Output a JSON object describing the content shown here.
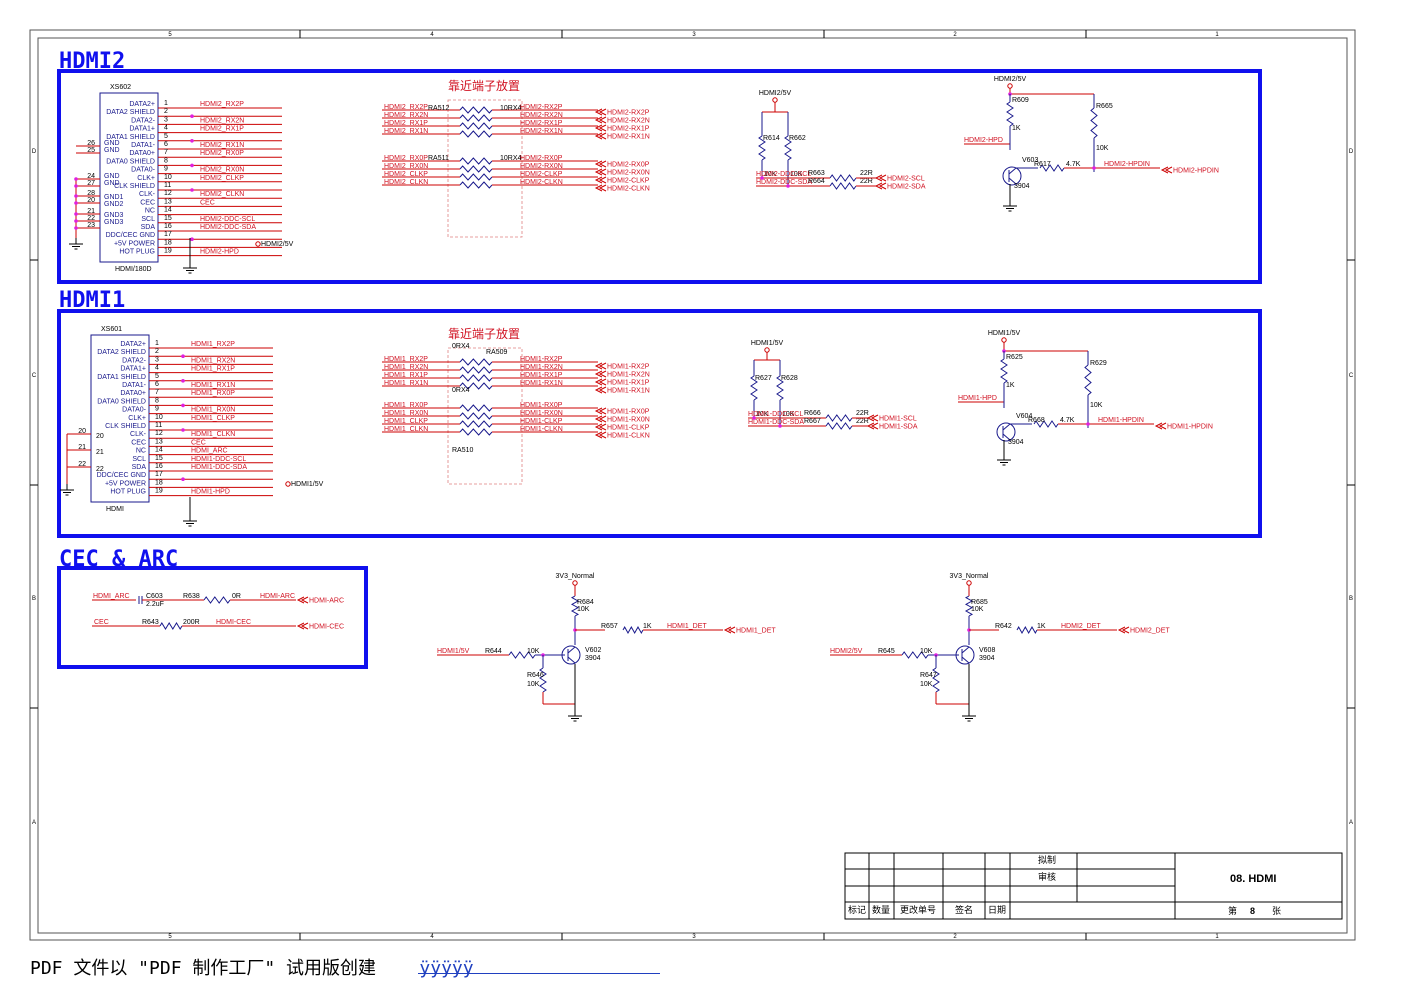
{
  "border": {
    "col_labels": [
      "5",
      "4",
      "3",
      "2",
      "1"
    ],
    "row_labels": [
      "D",
      "C",
      "B",
      "A"
    ]
  },
  "hdmi2": {
    "title": "HDMI2",
    "note": "靠近端子放置",
    "connector": {
      "ref": "XS602",
      "part": "HDMI/180D",
      "pins": [
        "DATA2+",
        "DATA2 SHIELD",
        "DATA2-",
        "DATA1+",
        "DATA1 SHIELD",
        "DATA1-",
        "DATA0+",
        "DATA0 SHIELD",
        "DATA0-",
        "CLK+",
        "CLK SHIELD",
        "CLK-",
        "CEC",
        "NC",
        "SCL",
        "SDA",
        "DDC/CEC GND",
        "+5V POWER",
        "HOT PLUG"
      ],
      "pin_numbers": [
        "1",
        "2",
        "3",
        "4",
        "5",
        "6",
        "7",
        "8",
        "9",
        "10",
        "11",
        "12",
        "13",
        "14",
        "15",
        "16",
        "17",
        "18",
        "19"
      ],
      "gnd_labels": [
        "GND",
        "GND",
        "GND",
        "GND",
        "GND1",
        "GND2",
        "GND3",
        "GND3"
      ],
      "gnd_pins": [
        "26",
        "25",
        "24",
        "27",
        "28",
        "20",
        "21",
        "22",
        "23"
      ],
      "nets": [
        "HDMI2_RX2P",
        "",
        "HDMI2_RX2N",
        "HDMI2_RX1P",
        "",
        "HDMI2_RX1N",
        "HDMI2_RX0P",
        "",
        "HDMI2_RX0N",
        "HDMI2_CLKP",
        "",
        "HDMI2_CLKN",
        "CEC",
        "",
        "HDMI2-DDC-SCL",
        "HDMI2-DDC-SDA",
        "",
        "",
        "HDMI2-HPD"
      ],
      "power": "HDMI2/5V"
    },
    "ra_top": {
      "ref": "RA512",
      "value": "10RX4",
      "in": [
        "HDMI2_RX2P",
        "HDMI2_RX2N",
        "HDMI2_RX1P",
        "HDMI2_RX1N"
      ],
      "out": [
        "HDMI2-RX2P",
        "HDMI2-RX2N",
        "HDMI2-RX1P",
        "HDMI2-RX1N"
      ]
    },
    "ra_bot": {
      "ref": "RA511",
      "value": "10RX4",
      "in": [
        "HDMI2_RX0P",
        "HDMI2_RX0N",
        "HDMI2_CLKP",
        "HDMI2_CLKN"
      ],
      "out": [
        "HDMI2-RX0P",
        "HDMI2-RX0N",
        "HDMI2-CLKP",
        "HDMI2-CLKN"
      ]
    },
    "ports": [
      "HDMI2-RX2P",
      "HDMI2-RX2N",
      "HDMI2-RX1P",
      "HDMI2-RX1N",
      "HDMI2-RX0P",
      "HDMI2-RX0N",
      "HDMI2-CLKP",
      "HDMI2-CLKN"
    ],
    "ddc": {
      "power": "HDMI2/5V",
      "r1": "R614",
      "r2": "R662",
      "v1": "10K",
      "v2": "10K",
      "r3": "R663",
      "r4": "R664",
      "v3": "22R",
      "v4": "22R",
      "scl_in": "HDMI2-DDC-SCL",
      "sda_in": "HDMI2-DDC-SDA",
      "scl_out": "HDMI2-SCL",
      "sda_out": "HDMI2-SDA"
    },
    "hpd": {
      "power": "HDMI2/5V",
      "r_a": "R609",
      "v_a": "1K",
      "r_b": "R665",
      "v_b": "10K",
      "in": "HDMI2-HPD",
      "q": "V603",
      "q_part": "3904",
      "r_c": "R617",
      "v_c": "4.7K",
      "net": "HDMI2-HPDIN",
      "port": "HDMI2-HPDIN"
    }
  },
  "hdmi1": {
    "title": "HDMI1",
    "note": "靠近端子放置",
    "connector": {
      "ref": "XS601",
      "part": "HDMI",
      "pins": [
        "DATA2+",
        "DATA2 SHIELD",
        "DATA2-",
        "DATA1+",
        "DATA1 SHIELD",
        "DATA1-",
        "DATA0+",
        "DATA0 SHIELD",
        "DATA0-",
        "CLK+",
        "CLK SHIELD",
        "CLK-",
        "CEC",
        "NC",
        "SCL",
        "SDA",
        "DDC/CEC GND",
        "+5V POWER",
        "HOT PLUG"
      ],
      "pin_numbers": [
        "1",
        "2",
        "3",
        "4",
        "5",
        "6",
        "7",
        "8",
        "9",
        "10",
        "11",
        "12",
        "13",
        "14",
        "15",
        "16",
        "17",
        "18",
        "19"
      ],
      "gnd_pins": [
        "20",
        "20",
        "21",
        "21",
        "22",
        "22"
      ],
      "nets": [
        "HDMI1_RX2P",
        "",
        "HDMI1_RX2N",
        "HDMI1_RX1P",
        "",
        "HDMI1_RX1N",
        "HDMI1_RX0P",
        "",
        "HDMI1_RX0N",
        "HDMI1_CLKP",
        "",
        "HDMI1_CLKN",
        "CEC",
        "HDMI_ARC",
        "HDMI1-DDC-SCL",
        "HDMI1-DDC-SDA",
        "",
        "",
        "HDMI1-HPD"
      ],
      "power": "HDMI1/5V"
    },
    "ra_top": {
      "ref": "RA509",
      "value": "0RX4",
      "in": [
        "HDMI1_RX2P",
        "HDMI1_RX2N",
        "HDMI1_RX1P",
        "HDMI1_RX1N"
      ],
      "out": [
        "HDMI1-RX2P",
        "HDMI1-RX2N",
        "HDMI1-RX1P",
        "HDMI1-RX1N"
      ]
    },
    "ra_bot": {
      "ref": "RA510",
      "value": "0RX4",
      "in": [
        "HDMI1_RX0P",
        "HDMI1_RX0N",
        "HDMI1_CLKP",
        "HDMI1_CLKN"
      ],
      "out": [
        "HDMI1-RX0P",
        "HDMI1-RX0N",
        "HDMI1-CLKP",
        "HDMI1-CLKN"
      ]
    },
    "ports": [
      "HDMI1-RX2P",
      "HDMI1-RX2N",
      "HDMI1-RX1P",
      "HDMI1-RX1N",
      "HDMI1-RX0P",
      "HDMI1-RX0N",
      "HDMI1-CLKP",
      "HDMI1-CLKN"
    ],
    "ddc": {
      "power": "HDMI1/5V",
      "r1": "R627",
      "r2": "R628",
      "v1": "10K",
      "v2": "10K",
      "r3": "R666",
      "r4": "R667",
      "v3": "22R",
      "v4": "22R",
      "scl_in": "HDMI1-DDC-SCL",
      "sda_in": "HDMI1-DDC-SDA",
      "scl_out": "HDMI1-SCL",
      "sda_out": "HDMI1-SDA"
    },
    "hpd": {
      "power": "HDMI1/5V",
      "r_a": "R625",
      "v_a": "1K",
      "r_b": "R629",
      "v_b": "10K",
      "in": "HDMI1-HPD",
      "q": "V604",
      "q_part": "3904",
      "r_c": "R668",
      "v_c": "4.7K",
      "net": "HDMI1-HPDIN",
      "port": "HDMI1-HPDIN"
    }
  },
  "cec": {
    "title": "CEC & ARC",
    "arc_net": "HDMI_ARC",
    "c": "C603",
    "c_val": "2.2uF",
    "r1": "R638",
    "r1_val": "0R",
    "arc_out_net": "HDMI-ARC",
    "arc_port": "HDMI-ARC",
    "cec_net": "CEC",
    "r2": "R643",
    "r2_val": "200R",
    "cec_out_net": "HDMI-CEC",
    "cec_port": "HDMI-CEC"
  },
  "det1": {
    "power": "3V3_Normal",
    "r_up": "R684",
    "r_up_v": "10K",
    "in_net": "HDMI1/5V",
    "r_in": "R644",
    "r_in_v": "10K",
    "r_pd": "R646",
    "r_pd_v": "10K",
    "q": "V602",
    "q_part": "3904",
    "r_out": "R657",
    "r_out_v": "1K",
    "out_net": "HDMI1_DET",
    "port": "HDMI1_DET"
  },
  "det2": {
    "power": "3V3_Normal",
    "r_up": "R685",
    "r_up_v": "10K",
    "in_net": "HDMI2/5V",
    "r_in": "R645",
    "r_in_v": "10K",
    "r_pd": "R647",
    "r_pd_v": "10K",
    "q": "V608",
    "q_part": "3904",
    "r_out": "R642",
    "r_out_v": "1K",
    "out_net": "HDMI2_DET",
    "port": "HDMI2_DET"
  },
  "titleblock": {
    "drawn": "拟制",
    "checked": "审核",
    "sheet_title": "08. HDMI",
    "cols": [
      "标记",
      "数量",
      "更改单号",
      "签名",
      "日期"
    ],
    "page_prefix": "第",
    "page": "8",
    "page_suffix": "张"
  },
  "footer": {
    "text": "PDF 文件以 \"PDF 制作工厂\" 试用版创建",
    "link": "ÿÿÿÿÿ"
  }
}
